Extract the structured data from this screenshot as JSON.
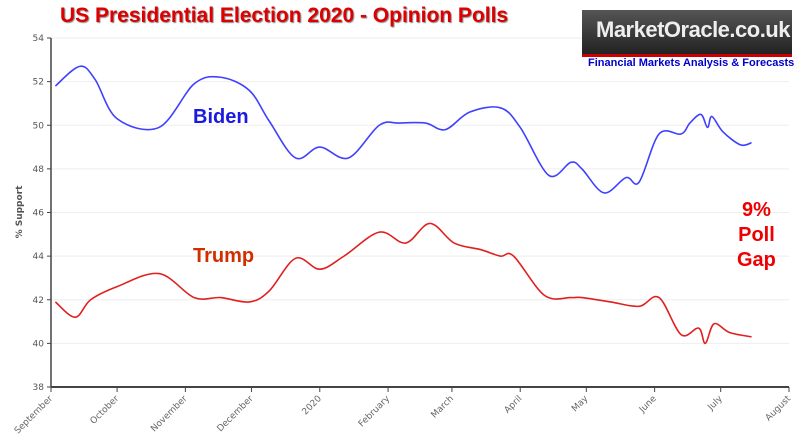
{
  "chart_data": {
    "type": "line",
    "title": "US Presidential Election 2020 - Opinion Polls",
    "ylabel": "% Support",
    "xlabel": "",
    "x_units": "days since 1 September 2019",
    "ylim": [
      38,
      54
    ],
    "xlim": [
      0,
      335
    ],
    "yticks": [
      38,
      40,
      42,
      44,
      46,
      48,
      50,
      52,
      54
    ],
    "xticks": [
      {
        "d": 0,
        "label": "September"
      },
      {
        "d": 30,
        "label": "October"
      },
      {
        "d": 61,
        "label": "November"
      },
      {
        "d": 91,
        "label": "December"
      },
      {
        "d": 122,
        "label": "2020"
      },
      {
        "d": 153,
        "label": "February"
      },
      {
        "d": 182,
        "label": "March"
      },
      {
        "d": 213,
        "label": "April"
      },
      {
        "d": 243,
        "label": "May"
      },
      {
        "d": 274,
        "label": "June"
      },
      {
        "d": 304,
        "label": "July"
      },
      {
        "d": 335,
        "label": "August"
      }
    ],
    "series": [
      {
        "name": "Biden",
        "color": "#4040ff",
        "x": [
          2,
          13,
          20,
          30,
          49,
          65,
          77,
          90,
          99,
          111,
          122,
          135,
          149,
          158,
          170,
          179,
          190,
          204,
          213,
          226,
          236,
          241,
          251,
          261,
          267,
          276,
          286,
          290,
          295,
          298,
          300,
          305,
          313,
          318
        ],
        "y": [
          51.8,
          52.7,
          52.1,
          50.3,
          49.9,
          51.9,
          52.2,
          51.6,
          50.2,
          48.5,
          49.0,
          48.5,
          50.0,
          50.1,
          50.1,
          49.8,
          50.6,
          50.8,
          49.9,
          47.7,
          48.3,
          48.0,
          46.9,
          47.6,
          47.4,
          49.6,
          49.6,
          50.1,
          50.5,
          49.9,
          50.4,
          49.7,
          49.1,
          49.2
        ]
      },
      {
        "name": "Trump",
        "color": "#e02020",
        "x": [
          2,
          11,
          18,
          30,
          49,
          65,
          77,
          90,
          99,
          111,
          122,
          133,
          149,
          161,
          172,
          183,
          195,
          204,
          210,
          224,
          236,
          241,
          254,
          267,
          276,
          286,
          294,
          297,
          301,
          308,
          318
        ],
        "y": [
          41.9,
          41.2,
          42.0,
          42.6,
          43.2,
          42.1,
          42.1,
          41.9,
          42.4,
          43.9,
          43.4,
          44.0,
          45.1,
          44.6,
          45.5,
          44.6,
          44.3,
          44.0,
          44.0,
          42.2,
          42.1,
          42.1,
          41.9,
          41.7,
          42.1,
          40.4,
          40.7,
          40.0,
          40.9,
          40.5,
          40.3
        ]
      }
    ],
    "annotations": {
      "biden": "Biden",
      "trump": "Trump",
      "gap": [
        "9%",
        "Poll",
        "Gap"
      ]
    }
  },
  "logo": {
    "name": "MarketOracle.co.uk",
    "tagline": "Financial Markets Analysis & Forecasts"
  }
}
